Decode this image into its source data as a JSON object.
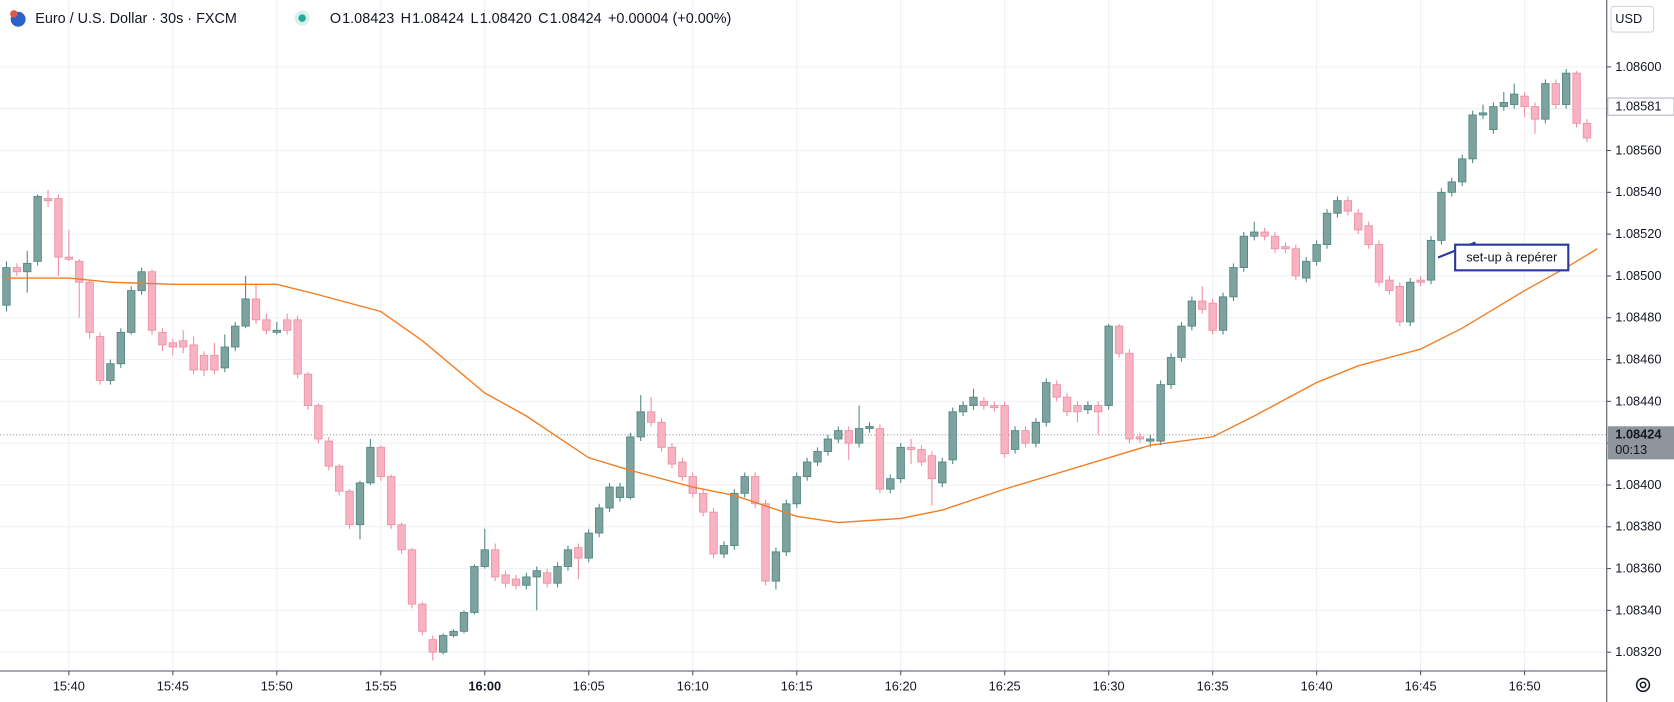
{
  "chart_data": {
    "type": "candlestick",
    "title": "Euro / U.S. Dollar · 30s · FXCM",
    "header": {
      "labels": [
        "O",
        "H",
        "L",
        "C"
      ],
      "values": [
        "1.08423",
        "1.08424",
        "1.08420",
        "1.08424"
      ],
      "change": "+0.00004 (+0.00%)"
    },
    "currency": "USD",
    "up_color": "#7ea39f",
    "down_color": "#f7b3c2",
    "grid": true,
    "x": [
      937,
      937.5,
      938,
      938.5,
      939,
      939.5,
      940,
      940.5,
      941,
      941.5,
      942,
      942.5,
      943,
      943.5,
      944,
      944.5,
      945,
      945.5,
      946,
      946.5,
      947,
      947.5,
      948,
      948.5,
      949,
      949.5,
      950,
      950.5,
      951,
      951.5,
      952,
      952.5,
      953,
      953.5,
      954,
      954.5,
      955,
      955.5,
      956,
      956.5,
      957,
      957.5,
      958,
      958.5,
      959,
      959.5,
      960,
      960.5,
      961,
      961.5,
      962,
      962.5,
      963,
      963.5,
      964,
      964.5,
      965,
      965.5,
      966,
      966.5,
      967,
      967.5,
      968,
      968.5,
      969,
      969.5,
      970,
      970.5,
      971,
      971.5,
      972,
      972.5,
      973,
      973.5,
      974,
      974.5,
      975,
      975.5,
      976,
      976.5,
      977,
      977.5,
      978,
      978.5,
      979,
      979.5,
      980,
      980.5,
      981,
      981.5,
      982,
      982.5,
      983,
      983.5,
      984,
      984.5,
      985,
      985.5,
      986,
      986.5,
      987,
      987.5,
      988,
      988.5,
      989,
      989.5,
      990,
      990.5,
      991,
      991.5,
      992,
      992.5,
      993,
      993.5,
      994,
      994.5,
      995,
      995.5,
      996,
      996.5,
      997,
      997.5,
      998,
      998.5,
      999,
      999.5,
      1000,
      1000.5,
      1001,
      1001.5,
      1002,
      1002.5,
      1003,
      1003.5,
      1004,
      1004.5,
      1005,
      1005.5,
      1006,
      1006.5,
      1007,
      1007.5,
      1008,
      1008.5,
      1009,
      1009.5,
      1010,
      1010.5,
      1011,
      1011.5,
      1012,
      1012.5,
      1013
    ],
    "open": [
      1.08486,
      1.08504,
      1.08502,
      1.08507,
      1.08537,
      1.08537,
      1.08509,
      1.08507,
      1.08497,
      1.08471,
      1.0845,
      1.08458,
      1.08473,
      1.08493,
      1.08502,
      1.08473,
      1.08468,
      1.08469,
      1.08467,
      1.08462,
      1.08462,
      1.08456,
      1.08466,
      1.08476,
      1.08489,
      1.08479,
      1.08473,
      1.08479,
      1.08479,
      1.08453,
      1.08438,
      1.08421,
      1.08409,
      1.08397,
      1.08381,
      1.08401,
      1.08418,
      1.08404,
      1.08381,
      1.08369,
      1.08343,
      1.08326,
      1.0832,
      1.08328,
      1.0833,
      1.08339,
      1.08361,
      1.08369,
      1.08357,
      1.08355,
      1.08352,
      1.08356,
      1.08358,
      1.08353,
      1.08361,
      1.0837,
      1.08365,
      1.08377,
      1.08389,
      1.08394,
      1.08394,
      1.08423,
      1.08435,
      1.0843,
      1.08418,
      1.08411,
      1.08404,
      1.08396,
      1.08387,
      1.08367,
      1.08371,
      1.08396,
      1.08404,
      1.08391,
      1.08354,
      1.08368,
      1.08391,
      1.08404,
      1.08411,
      1.08416,
      1.08422,
      1.08426,
      1.0842,
      1.08427,
      1.08427,
      1.08398,
      1.08403,
      1.08418,
      1.08417,
      1.08414,
      1.08401,
      1.08412,
      1.08435,
      1.08438,
      1.0844,
      1.08438,
      1.08438,
      1.08417,
      1.08426,
      1.0842,
      1.0843,
      1.08448,
      1.08442,
      1.08438,
      1.08436,
      1.08438,
      1.08438,
      1.08476,
      1.08463,
      1.08423,
      1.08421,
      1.08421,
      1.08448,
      1.08461,
      1.08476,
      1.08488,
      1.08487,
      1.08474,
      1.0849,
      1.08504,
      1.08519,
      1.08521,
      1.08519,
      1.08514,
      1.08513,
      1.08499,
      1.08507,
      1.08515,
      1.0853,
      1.08536,
      1.0853,
      1.08524,
      1.08515,
      1.08498,
      1.08495,
      1.08478,
      1.08498,
      1.08498,
      1.08517,
      1.0854,
      1.08545,
      1.08556,
      1.08577,
      1.0857,
      1.08581,
      1.08582,
      1.08586,
      1.08581,
      1.08575,
      1.08592,
      1.08582,
      1.08597,
      1.08573
    ],
    "high": [
      1.08507,
      1.08506,
      1.08512,
      1.08539,
      1.08541,
      1.08539,
      1.08522,
      1.08508,
      1.08498,
      1.08473,
      1.0846,
      1.08475,
      1.08495,
      1.08504,
      1.08503,
      1.08475,
      1.0847,
      1.08474,
      1.08471,
      1.08464,
      1.08468,
      1.08472,
      1.08478,
      1.085,
      1.08496,
      1.08482,
      1.08478,
      1.08482,
      1.08481,
      1.08454,
      1.08439,
      1.08423,
      1.0841,
      1.08398,
      1.08402,
      1.08422,
      1.08419,
      1.08405,
      1.08382,
      1.0837,
      1.08344,
      1.08328,
      1.08329,
      1.08331,
      1.0834,
      1.08362,
      1.08379,
      1.08372,
      1.08359,
      1.08357,
      1.08358,
      1.08361,
      1.0836,
      1.08363,
      1.08371,
      1.08372,
      1.08379,
      1.08391,
      1.08401,
      1.08401,
      1.08425,
      1.08443,
      1.08442,
      1.08432,
      1.0842,
      1.08413,
      1.08406,
      1.08398,
      1.08389,
      1.08373,
      1.08398,
      1.08406,
      1.08406,
      1.08393,
      1.0837,
      1.08393,
      1.08406,
      1.08413,
      1.08418,
      1.08424,
      1.08428,
      1.08428,
      1.08438,
      1.0843,
      1.08429,
      1.08405,
      1.0842,
      1.08422,
      1.08419,
      1.08416,
      1.08413,
      1.08437,
      1.0844,
      1.08446,
      1.08442,
      1.0844,
      1.0844,
      1.08428,
      1.08428,
      1.08432,
      1.08451,
      1.0845,
      1.08444,
      1.0844,
      1.0844,
      1.0844,
      1.08477,
      1.08477,
      1.08465,
      1.08425,
      1.08424,
      1.0845,
      1.08463,
      1.08478,
      1.0849,
      1.08495,
      1.08489,
      1.08492,
      1.08506,
      1.08521,
      1.08526,
      1.08523,
      1.08521,
      1.08516,
      1.08515,
      1.08509,
      1.08517,
      1.08532,
      1.08538,
      1.08538,
      1.08532,
      1.08526,
      1.08517,
      1.085,
      1.08497,
      1.08499,
      1.085,
      1.08519,
      1.08542,
      1.08547,
      1.08558,
      1.08579,
      1.08582,
      1.08583,
      1.08588,
      1.08592,
      1.08588,
      1.08583,
      1.08594,
      1.08594,
      1.08599,
      1.08598,
      1.08575
    ],
    "low": [
      1.08483,
      1.085,
      1.08492,
      1.08505,
      1.08533,
      1.085,
      1.08507,
      1.0848,
      1.0847,
      1.08448,
      1.08448,
      1.08456,
      1.08472,
      1.08491,
      1.08472,
      1.08464,
      1.08462,
      1.08463,
      1.08453,
      1.08452,
      1.08453,
      1.08454,
      1.08464,
      1.08475,
      1.08477,
      1.08472,
      1.08472,
      1.08472,
      1.08451,
      1.08436,
      1.0842,
      1.08407,
      1.08395,
      1.08379,
      1.08374,
      1.084,
      1.08402,
      1.08379,
      1.08367,
      1.08341,
      1.08328,
      1.08316,
      1.08319,
      1.08327,
      1.08329,
      1.08338,
      1.0836,
      1.08354,
      1.08351,
      1.0835,
      1.0835,
      1.0834,
      1.08351,
      1.08351,
      1.08359,
      1.08355,
      1.08363,
      1.08375,
      1.08387,
      1.08392,
      1.08393,
      1.08421,
      1.08428,
      1.08416,
      1.08408,
      1.08402,
      1.08394,
      1.08385,
      1.08365,
      1.08365,
      1.08369,
      1.08394,
      1.08389,
      1.08352,
      1.0835,
      1.08366,
      1.08389,
      1.08402,
      1.08409,
      1.08414,
      1.0842,
      1.08412,
      1.08418,
      1.08425,
      1.08396,
      1.08396,
      1.08401,
      1.0841,
      1.08409,
      1.0839,
      1.08399,
      1.0841,
      1.08433,
      1.08436,
      1.08436,
      1.08435,
      1.08413,
      1.08415,
      1.08418,
      1.08418,
      1.08428,
      1.0844,
      1.08433,
      1.0843,
      1.08434,
      1.08424,
      1.08436,
      1.08461,
      1.0842,
      1.0842,
      1.08418,
      1.08419,
      1.08446,
      1.08459,
      1.08474,
      1.08482,
      1.08472,
      1.08472,
      1.08488,
      1.08502,
      1.08517,
      1.08517,
      1.08511,
      1.08511,
      1.08498,
      1.08497,
      1.08505,
      1.08513,
      1.08528,
      1.08529,
      1.0852,
      1.08513,
      1.08495,
      1.08491,
      1.08476,
      1.08476,
      1.08495,
      1.08496,
      1.08515,
      1.08538,
      1.08543,
      1.08554,
      1.08575,
      1.08568,
      1.08579,
      1.0858,
      1.08576,
      1.08568,
      1.08573,
      1.0858,
      1.0858,
      1.08571,
      1.08564
    ],
    "close": [
      1.08504,
      1.08502,
      1.08506,
      1.08538,
      1.08536,
      1.08509,
      1.08508,
      1.08497,
      1.08473,
      1.0845,
      1.08458,
      1.08473,
      1.08493,
      1.08502,
      1.08474,
      1.08467,
      1.08466,
      1.08466,
      1.08455,
      1.08455,
      1.08455,
      1.08466,
      1.08476,
      1.08489,
      1.08479,
      1.08474,
      1.08474,
      1.08474,
      1.08453,
      1.08438,
      1.08422,
      1.08409,
      1.08397,
      1.08381,
      1.08401,
      1.08418,
      1.08404,
      1.08381,
      1.08369,
      1.08343,
      1.0833,
      1.0832,
      1.08328,
      1.0833,
      1.08339,
      1.08361,
      1.08369,
      1.08356,
      1.08353,
      1.08352,
      1.08356,
      1.08359,
      1.08353,
      1.08361,
      1.08369,
      1.08365,
      1.08377,
      1.08389,
      1.08399,
      1.08399,
      1.08423,
      1.08435,
      1.0843,
      1.08418,
      1.0841,
      1.08404,
      1.08396,
      1.08387,
      1.08367,
      1.08371,
      1.08396,
      1.08404,
      1.08391,
      1.08354,
      1.08368,
      1.08391,
      1.08404,
      1.08411,
      1.08416,
      1.08422,
      1.08426,
      1.0842,
      1.08427,
      1.08428,
      1.08398,
      1.08403,
      1.08418,
      1.08417,
      1.08411,
      1.08403,
      1.08411,
      1.08435,
      1.08438,
      1.08442,
      1.08438,
      1.08437,
      1.08415,
      1.08426,
      1.0842,
      1.0843,
      1.08449,
      1.08442,
      1.08435,
      1.08435,
      1.08438,
      1.08435,
      1.08476,
      1.08463,
      1.08422,
      1.08422,
      1.08422,
      1.08448,
      1.08461,
      1.08476,
      1.08488,
      1.08484,
      1.08474,
      1.0849,
      1.08504,
      1.08519,
      1.08521,
      1.08519,
      1.08513,
      1.08513,
      1.085,
      1.08507,
      1.08515,
      1.0853,
      1.08536,
      1.08531,
      1.08522,
      1.08515,
      1.08497,
      1.08493,
      1.08478,
      1.08497,
      1.08497,
      1.08517,
      1.0854,
      1.08545,
      1.08556,
      1.08577,
      1.08578,
      1.08581,
      1.08583,
      1.08587,
      1.08581,
      1.08575,
      1.08592,
      1.08582,
      1.08597,
      1.08573,
      1.08566
    ],
    "series": [
      {
        "color": "#f57c1f",
        "x": [
          937,
          940,
          942,
          945,
          950,
          952,
          955,
          957,
          960,
          962,
          965,
          967,
          970,
          972,
          975,
          977,
          980,
          982,
          985,
          987,
          990,
          992,
          995,
          997,
          1000,
          1002,
          1005,
          1007,
          1010,
          1012,
          1013.5
        ],
        "values": [
          1.08499,
          1.08499,
          1.08497,
          1.08496,
          1.08496,
          1.08491,
          1.08483,
          1.08469,
          1.08444,
          1.08433,
          1.08413,
          1.08407,
          1.08399,
          1.08395,
          1.08385,
          1.08382,
          1.08384,
          1.08388,
          1.08398,
          1.08404,
          1.08413,
          1.08419,
          1.08423,
          1.08433,
          1.08449,
          1.08457,
          1.08465,
          1.08475,
          1.08493,
          1.08504,
          1.08513
        ]
      }
    ],
    "xlim": [
      936.69,
      1013.95
    ],
    "xticks": [
      {
        "value": 940,
        "label": "15:40"
      },
      {
        "value": 945,
        "label": "15:45"
      },
      {
        "value": 950,
        "label": "15:50"
      },
      {
        "value": 955,
        "label": "15:55"
      },
      {
        "value": 960,
        "label": "16:00"
      },
      {
        "value": 965,
        "label": "16:05"
      },
      {
        "value": 970,
        "label": "16:10"
      },
      {
        "value": 975,
        "label": "16:15"
      },
      {
        "value": 980,
        "label": "16:20"
      },
      {
        "value": 985,
        "label": "16:25"
      },
      {
        "value": 990,
        "label": "16:30"
      },
      {
        "value": 995,
        "label": "16:35"
      },
      {
        "value": 1000,
        "label": "16:40"
      },
      {
        "value": 1005,
        "label": "16:45"
      },
      {
        "value": 1010,
        "label": "16:50"
      }
    ],
    "ylim": [
      1.08311,
      1.08632
    ],
    "yticks": [
      {
        "value": 1.0832,
        "label": "1.08320"
      },
      {
        "value": 1.0834,
        "label": "1.08340"
      },
      {
        "value": 1.0836,
        "label": "1.08360"
      },
      {
        "value": 1.0838,
        "label": "1.08380"
      },
      {
        "value": 1.084,
        "label": "1.08400"
      },
      {
        "value": 1.0842,
        "label": "1.08420"
      },
      {
        "value": 1.0844,
        "label": "1.08440"
      },
      {
        "value": 1.0846,
        "label": "1.08460"
      },
      {
        "value": 1.0848,
        "label": "1.08480"
      },
      {
        "value": 1.085,
        "label": "1.08500"
      },
      {
        "value": 1.0852,
        "label": "1.08520"
      },
      {
        "value": 1.0854,
        "label": "1.08540"
      },
      {
        "value": 1.0856,
        "label": "1.08560"
      },
      {
        "value": 1.0858,
        "label": "1.08580"
      },
      {
        "value": 1.086,
        "label": "1.08600"
      }
    ],
    "price_lines": [
      {
        "value": 1.08581,
        "label": "1.08581"
      },
      {
        "value": 1.08424,
        "label": "1.08424",
        "countdown": "00:13"
      }
    ],
    "annotation": "set-up à repérer"
  }
}
